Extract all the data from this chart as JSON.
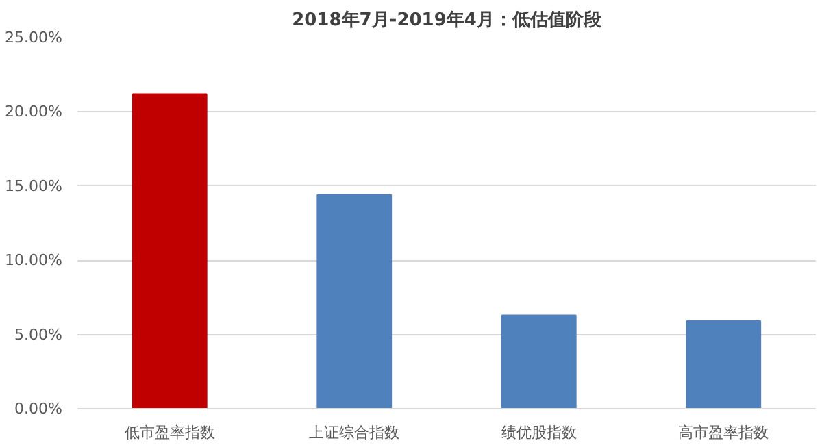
{
  "chart_data": {
    "type": "bar",
    "title": "2018年7月-2019年4月：低估值阶段",
    "categories": [
      "低市盈率指数",
      "上证综合指数",
      "绩优股指数",
      "高市盈率指数"
    ],
    "values": [
      21.2,
      14.4,
      6.3,
      5.9
    ],
    "colors": [
      "#c00000",
      "#4f81bd",
      "#4f81bd",
      "#4f81bd"
    ],
    "ylim": [
      0,
      25
    ],
    "yticks": [
      {
        "value": 0,
        "label": "0.00%"
      },
      {
        "value": 5,
        "label": "5.00%"
      },
      {
        "value": 10,
        "label": "10.00%"
      },
      {
        "value": 15,
        "label": "15.00%"
      },
      {
        "value": 20,
        "label": "20.00%"
      },
      {
        "value": 25,
        "label": "25.00%"
      }
    ],
    "grid": "y"
  }
}
